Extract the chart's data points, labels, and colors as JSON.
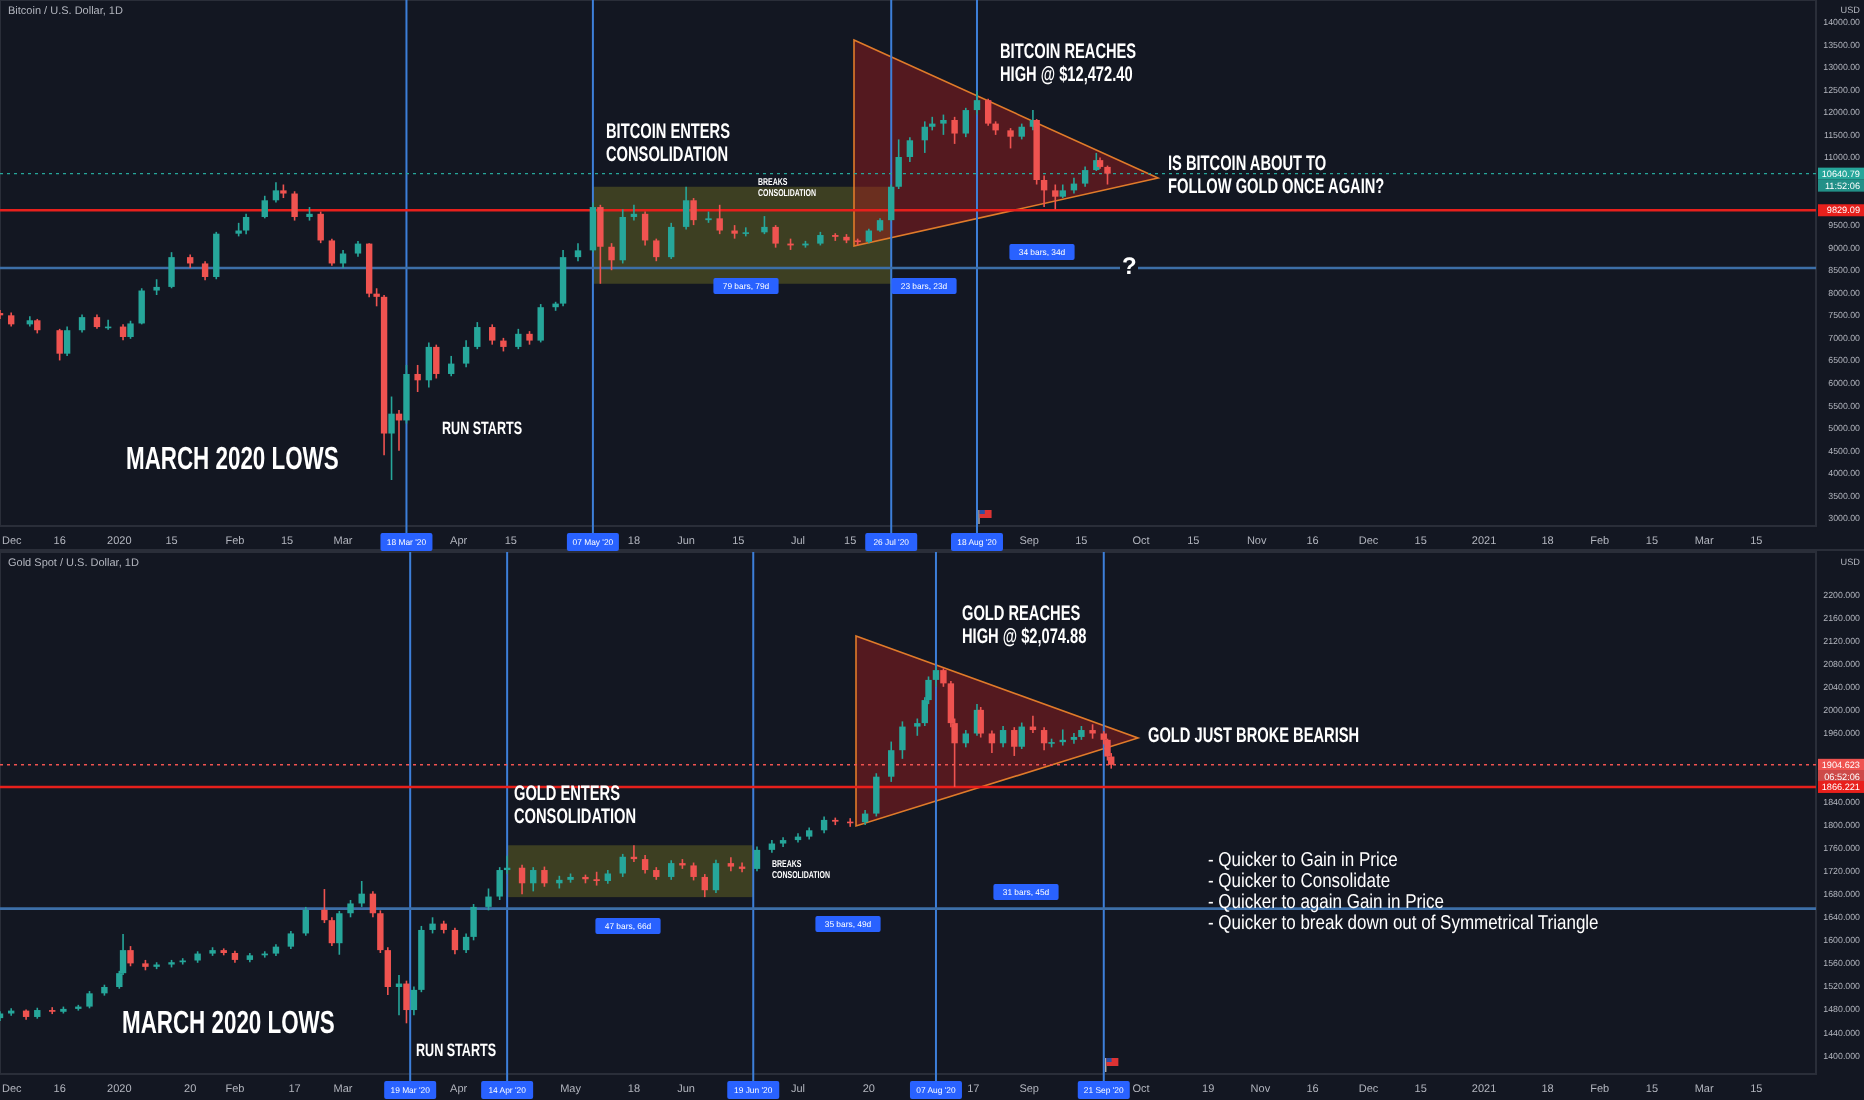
{
  "chart_data": [
    {
      "type": "candlestick",
      "title": "Bitcoin / U.S. Dollar, 1D",
      "ylabel": "USD",
      "colors": [
        "#ef5350",
        "#ef5350",
        "#26a69a",
        "#ef5350",
        "#ef5350",
        "#26a69a",
        "#26a69a",
        "#ef5350",
        "#26a69a",
        "#ef5350",
        "#26a69a",
        "#26a69a",
        "#26a69a",
        "#26a69a",
        "#ef5350",
        "#ef5350",
        "#26a69a",
        "#26a69a",
        "#26a69a",
        "#26a69a",
        "#26a69a",
        "#ef5350",
        "#ef5350",
        "#26a69a",
        "#ef5350",
        "#ef5350",
        "#26a69a",
        "#26a69a",
        "#ef5350",
        "#ef5350",
        "#ef5350",
        "#26a69a",
        "#ef5350",
        "#26a69a",
        "#ef5350",
        "#26a69a",
        "#ef5350",
        "#26a69a",
        "#26a69a",
        "#26a69a",
        "#ef5350",
        "#ef5350",
        "#26a69a",
        "#ef5350",
        "#26a69a",
        "#26a69a",
        "#26a69a",
        "#26a69a",
        "#26a69a",
        "#ef5350",
        "#ef5350",
        "#26a69a",
        "#26a69a",
        "#ef5350",
        "#ef5350",
        "#26a69a",
        "#26a69a",
        "#ef5350",
        "#26a69a",
        "#ef5350",
        "#ef5350",
        "#26a69a",
        "#26a69a",
        "#ef5350",
        "#ef5350",
        "#26a69a",
        "#26a69a",
        "#ef5350",
        "#ef5350",
        "#ef5350",
        "#26a69a",
        "#26a69a",
        "#26a69a",
        "#26a69a",
        "#26a69a",
        "#26a69a",
        "#26a69a",
        "#26a69a",
        "#ef5350",
        "#26a69a",
        "#26a69a",
        "#ef5350",
        "#ef5350",
        "#ef5350",
        "#26a69a",
        "#26a69a",
        "#ef5350",
        "#ef5350",
        "#ef5350",
        "#26a69a",
        "#26a69a",
        "#26a69a",
        "#26a69a",
        "#ef5350",
        "#ef5350"
      ],
      "xlim": [
        "2019-11-30",
        "2021-03-31"
      ],
      "xticks": [
        {
          "value": "2019-12-01",
          "label": "Dec"
        },
        {
          "value": "2019-12-16",
          "label": "16"
        },
        {
          "value": "2020-01-01",
          "label": "2020"
        },
        {
          "value": "2020-01-15",
          "label": "15"
        },
        {
          "value": "2020-02-01",
          "label": "Feb"
        },
        {
          "value": "2020-02-15",
          "label": "15"
        },
        {
          "value": "2020-03-01",
          "label": "Mar"
        },
        {
          "value": "2020-04-01",
          "label": "Apr"
        },
        {
          "value": "2020-04-15",
          "label": "15"
        },
        {
          "value": "2020-05-18",
          "label": "18"
        },
        {
          "value": "2020-06-01",
          "label": "Jun"
        },
        {
          "value": "2020-06-15",
          "label": "15"
        },
        {
          "value": "2020-07-01",
          "label": "Jul"
        },
        {
          "value": "2020-07-15",
          "label": "15"
        },
        {
          "value": "2020-09-01",
          "label": "Sep"
        },
        {
          "value": "2020-09-15",
          "label": "15"
        },
        {
          "value": "2020-10-01",
          "label": "Oct"
        },
        {
          "value": "2020-10-15",
          "label": "15"
        },
        {
          "value": "2020-11-01",
          "label": "Nov"
        },
        {
          "value": "2020-11-16",
          "label": "16"
        },
        {
          "value": "2020-12-01",
          "label": "Dec"
        },
        {
          "value": "2020-12-15",
          "label": "15"
        },
        {
          "value": "2021-01-01",
          "label": "2021"
        },
        {
          "value": "2021-01-18",
          "label": "18"
        },
        {
          "value": "2021-02-01",
          "label": "Feb"
        },
        {
          "value": "2021-02-15",
          "label": "15"
        },
        {
          "value": "2021-03-01",
          "label": "Mar"
        },
        {
          "value": "2021-03-15",
          "label": "15"
        }
      ],
      "ylim": [
        2830,
        14490
      ],
      "yticks": [
        {
          "value": 3000,
          "label": "3000.00"
        },
        {
          "value": 3500,
          "label": "3500.00"
        },
        {
          "value": 4000,
          "label": "4000.00"
        },
        {
          "value": 4500,
          "label": "4500.00"
        },
        {
          "value": 5000,
          "label": "5000.00"
        },
        {
          "value": 5500,
          "label": "5500.00"
        },
        {
          "value": 6000,
          "label": "6000.00"
        },
        {
          "value": 6500,
          "label": "6500.00"
        },
        {
          "value": 7000,
          "label": "7000.00"
        },
        {
          "value": 7500,
          "label": "7500.00"
        },
        {
          "value": 8000,
          "label": "8000.00"
        },
        {
          "value": 8500,
          "label": "8500.00"
        },
        {
          "value": 9000,
          "label": "9000.00"
        },
        {
          "value": 9500,
          "label": "9500.00"
        },
        {
          "value": 11000,
          "label": "11000.00"
        },
        {
          "value": 11500,
          "label": "11500.00"
        },
        {
          "value": 12000,
          "label": "12000.00"
        },
        {
          "value": 12500,
          "label": "12500.00"
        },
        {
          "value": 13000,
          "label": "13000.00"
        },
        {
          "value": 13500,
          "label": "13500.00"
        },
        {
          "value": 14000,
          "label": "14000.00"
        }
      ],
      "x": [
        "2019-11-30",
        "2019-12-03",
        "2019-12-08",
        "2019-12-10",
        "2019-12-16",
        "2019-12-18",
        "2019-12-22",
        "2019-12-26",
        "2019-12-29",
        "2020-01-02",
        "2020-01-04",
        "2020-01-07",
        "2020-01-11",
        "2020-01-15",
        "2020-01-20",
        "2020-01-24",
        "2020-01-27",
        "2020-02-02",
        "2020-02-04",
        "2020-02-09",
        "2020-02-12",
        "2020-02-14",
        "2020-02-17",
        "2020-02-21",
        "2020-02-24",
        "2020-02-27",
        "2020-03-01",
        "2020-03-05",
        "2020-03-08",
        "2020-03-10",
        "2020-03-12",
        "2020-03-14",
        "2020-03-16",
        "2020-03-18",
        "2020-03-21",
        "2020-03-24",
        "2020-03-26",
        "2020-03-30",
        "2020-04-03",
        "2020-04-06",
        "2020-04-10",
        "2020-04-13",
        "2020-04-17",
        "2020-04-20",
        "2020-04-23",
        "2020-04-27",
        "2020-04-29",
        "2020-05-03",
        "2020-05-07",
        "2020-05-09",
        "2020-05-12",
        "2020-05-15",
        "2020-05-18",
        "2020-05-21",
        "2020-05-24",
        "2020-05-28",
        "2020-06-01",
        "2020-06-03",
        "2020-06-07",
        "2020-06-10",
        "2020-06-14",
        "2020-06-17",
        "2020-06-22",
        "2020-06-25",
        "2020-06-29",
        "2020-07-03",
        "2020-07-07",
        "2020-07-11",
        "2020-07-14",
        "2020-07-17",
        "2020-07-20",
        "2020-07-23",
        "2020-07-26",
        "2020-07-28",
        "2020-07-31",
        "2020-08-04",
        "2020-08-06",
        "2020-08-09",
        "2020-08-12",
        "2020-08-15",
        "2020-08-18",
        "2020-08-21",
        "2020-08-23",
        "2020-08-27",
        "2020-08-30",
        "2020-09-02",
        "2020-09-03",
        "2020-09-05",
        "2020-09-08",
        "2020-09-10",
        "2020-09-13",
        "2020-09-16",
        "2020-09-19",
        "2020-09-20",
        "2020-09-22"
      ],
      "ohlc": [
        [
          7550,
          7620,
          7420,
          7500
        ],
        [
          7500,
          7560,
          7250,
          7300
        ],
        [
          7300,
          7480,
          7250,
          7390
        ],
        [
          7390,
          7420,
          7100,
          7170
        ],
        [
          7170,
          7200,
          6500,
          6650
        ],
        [
          6650,
          7250,
          6600,
          7170
        ],
        [
          7170,
          7520,
          7120,
          7460
        ],
        [
          7460,
          7520,
          7200,
          7240
        ],
        [
          7240,
          7400,
          7180,
          7250
        ],
        [
          7250,
          7300,
          6950,
          7020
        ],
        [
          7020,
          7380,
          6980,
          7320
        ],
        [
          7320,
          8100,
          7300,
          8050
        ],
        [
          8050,
          8300,
          7950,
          8130
        ],
        [
          8130,
          8900,
          8100,
          8790
        ],
        [
          8790,
          8850,
          8550,
          8650
        ],
        [
          8650,
          8700,
          8280,
          8350
        ],
        [
          8350,
          9350,
          8300,
          9310
        ],
        [
          9310,
          9550,
          9250,
          9380
        ],
        [
          9380,
          9750,
          9300,
          9680
        ],
        [
          9680,
          10150,
          9650,
          10050
        ],
        [
          10050,
          10450,
          10000,
          10270
        ],
        [
          10270,
          10400,
          10100,
          10200
        ],
        [
          10200,
          10250,
          9600,
          9680
        ],
        [
          9680,
          9900,
          9600,
          9750
        ],
        [
          9750,
          9800,
          9100,
          9160
        ],
        [
          9160,
          9200,
          8600,
          8650
        ],
        [
          8650,
          8950,
          8550,
          8870
        ],
        [
          8870,
          9150,
          8800,
          9090
        ],
        [
          9090,
          9100,
          7900,
          7980
        ],
        [
          7980,
          8100,
          7700,
          7910
        ],
        [
          7910,
          7950,
          4400,
          4880
        ],
        [
          4880,
          5700,
          3850,
          5320
        ],
        [
          5320,
          5400,
          4500,
          5170
        ],
        [
          5170,
          6400,
          5100,
          6200
        ],
        [
          6200,
          6400,
          5800,
          6060
        ],
        [
          6060,
          6900,
          5900,
          6800
        ],
        [
          6800,
          6850,
          6100,
          6200
        ],
        [
          6200,
          6600,
          6150,
          6430
        ],
        [
          6430,
          6950,
          6350,
          6800
        ],
        [
          6800,
          7350,
          6750,
          7240
        ],
        [
          7240,
          7300,
          6850,
          6940
        ],
        [
          6940,
          7000,
          6700,
          6800
        ],
        [
          6800,
          7200,
          6750,
          7090
        ],
        [
          7090,
          7150,
          6850,
          6940
        ],
        [
          6940,
          7750,
          6900,
          7680
        ],
        [
          7680,
          7800,
          7600,
          7760
        ],
        [
          7760,
          8950,
          7700,
          8790
        ],
        [
          8790,
          9100,
          8700,
          8940
        ],
        [
          8940,
          10000,
          8900,
          9900
        ],
        [
          9900,
          9950,
          8200,
          9020
        ],
        [
          9020,
          9100,
          8500,
          8720
        ],
        [
          8720,
          9850,
          8650,
          9680
        ],
        [
          9680,
          9950,
          9600,
          9750
        ],
        [
          9750,
          9800,
          9050,
          9160
        ],
        [
          9160,
          9200,
          8700,
          8790
        ],
        [
          8790,
          9550,
          8750,
          9460
        ],
        [
          9460,
          10350,
          9400,
          10050
        ],
        [
          10050,
          10100,
          9500,
          9610
        ],
        [
          9610,
          9800,
          9550,
          9650
        ],
        [
          9650,
          9950,
          9300,
          9380
        ],
        [
          9380,
          9500,
          9200,
          9310
        ],
        [
          9310,
          9450,
          9250,
          9340
        ],
        [
          9340,
          9700,
          9300,
          9460
        ],
        [
          9460,
          9500,
          9000,
          9090
        ],
        [
          9090,
          9200,
          8950,
          9050
        ],
        [
          9050,
          9150,
          9000,
          9090
        ],
        [
          9090,
          9350,
          9050,
          9280
        ],
        [
          9280,
          9320,
          9150,
          9240
        ],
        [
          9240,
          9300,
          9100,
          9160
        ],
        [
          9160,
          9200,
          9050,
          9130
        ],
        [
          9130,
          9420,
          9100,
          9380
        ],
        [
          9380,
          9650,
          9350,
          9610
        ],
        [
          9610,
          10400,
          9600,
          10350
        ],
        [
          10350,
          11400,
          10300,
          11010
        ],
        [
          11010,
          11450,
          10900,
          11380
        ],
        [
          11380,
          11800,
          11100,
          11680
        ],
        [
          11680,
          11900,
          11600,
          11750
        ],
        [
          11750,
          11950,
          11500,
          11830
        ],
        [
          11830,
          11900,
          11300,
          11530
        ],
        [
          11530,
          12100,
          11450,
          12050
        ],
        [
          12050,
          12472.4,
          11950,
          12270
        ],
        [
          12270,
          12300,
          11700,
          11750
        ],
        [
          11750,
          11800,
          11500,
          11600
        ],
        [
          11600,
          11650,
          11200,
          11460
        ],
        [
          11460,
          11750,
          11400,
          11680
        ],
        [
          11680,
          12050,
          11600,
          11830
        ],
        [
          11830,
          11850,
          10400,
          10500
        ],
        [
          10500,
          10600,
          9900,
          10270
        ],
        [
          10270,
          10400,
          9850,
          10130
        ],
        [
          10130,
          10400,
          10100,
          10270
        ],
        [
          10270,
          10550,
          10200,
          10420
        ],
        [
          10420,
          10800,
          10350,
          10720
        ],
        [
          10720,
          11100,
          10700,
          10940
        ],
        [
          10940,
          11000,
          10750,
          10790
        ],
        [
          10790,
          10820,
          10400,
          10640.79
        ]
      ],
      "bands": [
        {
          "axis": "x",
          "from": "2020-05-07",
          "to": "2020-07-26",
          "color": "#7d7d22"
        }
      ],
      "ref_lines": [
        {
          "axis": "x",
          "value": "2020-03-18",
          "label": "18 Mar '20",
          "color": "#3d7fd9"
        },
        {
          "axis": "x",
          "value": "2020-05-07",
          "label": "07 May '20",
          "color": "#3d7fd9"
        },
        {
          "axis": "x",
          "value": "2020-07-26",
          "label": "26 Jul '20",
          "color": "#3d7fd9"
        },
        {
          "axis": "x",
          "value": "2020-08-18",
          "label": "18 Aug '20",
          "color": "#3d7fd9"
        },
        {
          "axis": "y",
          "value": 10640.79,
          "label": "10640.79",
          "color": "#26a69a",
          "line_style": "dotted"
        },
        {
          "axis": "y",
          "value": 9829.09,
          "label": "9829.09",
          "color": "#e8201c"
        },
        {
          "axis": "y",
          "value": 8550,
          "label": null,
          "color": "#3d6fa8"
        }
      ],
      "annotations": [
        "MARCH 2020 LOWS",
        "RUN STARTS",
        "BITCOIN ENTERS\nCONSOLIDATION",
        "BREAKS\nCONSOLIDATION",
        "BITCOIN REACHES\nHIGH @ $12,472.40",
        "IS BITCOIN ABOUT TO\nFOLLOW GOLD ONCE AGAIN?",
        "?",
        "79 bars, 79d",
        "23 bars, 23d",
        "34 bars, 34d",
        "11:52:06"
      ]
    },
    {
      "type": "candlestick",
      "title": "Gold Spot / U.S. Dollar, 1D",
      "ylabel": "USD",
      "colors": [
        "#26a69a",
        "#26a69a",
        "#ef5350",
        "#26a69a",
        "#ef5350",
        "#26a69a",
        "#26a69a",
        "#26a69a",
        "#26a69a",
        "#26a69a",
        "#26a69a",
        "#ef5350",
        "#ef5350",
        "#26a69a",
        "#26a69a",
        "#26a69a",
        "#26a69a",
        "#26a69a",
        "#ef5350",
        "#ef5350",
        "#26a69a",
        "#26a69a",
        "#26a69a",
        "#26a69a",
        "#26a69a",
        "#ef5350",
        "#ef5350",
        "#26a69a",
        "#26a69a",
        "#26a69a",
        "#ef5350",
        "#ef5350",
        "#ef5350",
        "#26a69a",
        "#ef5350",
        "#26a69a",
        "#26a69a",
        "#26a69a",
        "#ef5350",
        "#ef5350",
        "#26a69a",
        "#26a69a",
        "#26a69a",
        "#26a69a",
        "#26a69a",
        "#ef5350",
        "#26a69a",
        "#ef5350",
        "#26a69a",
        "#26a69a",
        "#ef5350",
        "#ef5350",
        "#26a69a",
        "#26a69a",
        "#ef5350",
        "#ef5350",
        "#ef5350",
        "#26a69a",
        "#ef5350",
        "#ef5350",
        "#ef5350",
        "#26a69a",
        "#ef5350",
        "#ef5350",
        "#26a69a",
        "#26a69a",
        "#26a69a",
        "#26a69a",
        "#26a69a",
        "#26a69a",
        "#ef5350",
        "#ef5350",
        "#26a69a",
        "#26a69a",
        "#26a69a",
        "#26a69a",
        "#26a69a",
        "#26a69a",
        "#26a69a",
        "#26a69a",
        "#ef5350",
        "#ef5350",
        "#ef5350",
        "#26a69a",
        "#26a69a",
        "#ef5350",
        "#ef5350",
        "#26a69a",
        "#ef5350",
        "#26a69a",
        "#ef5350",
        "#ef5350",
        "#26a69a",
        "#26a69a",
        "#26a69a",
        "#26a69a",
        "#ef5350",
        "#ef5350",
        "#ef5350",
        "#ef5350"
      ],
      "xlim": [
        "2019-11-30",
        "2021-03-31"
      ],
      "xticks": [
        {
          "value": "2019-12-01",
          "label": "Dec"
        },
        {
          "value": "2019-12-16",
          "label": "16"
        },
        {
          "value": "2020-01-01",
          "label": "2020"
        },
        {
          "value": "2020-01-20",
          "label": "20"
        },
        {
          "value": "2020-02-01",
          "label": "Feb"
        },
        {
          "value": "2020-02-17",
          "label": "17"
        },
        {
          "value": "2020-03-01",
          "label": "Mar"
        },
        {
          "value": "2020-04-01",
          "label": "Apr"
        },
        {
          "value": "2020-05-01",
          "label": "May"
        },
        {
          "value": "2020-05-18",
          "label": "18"
        },
        {
          "value": "2020-06-01",
          "label": "Jun"
        },
        {
          "value": "2020-07-01",
          "label": "Jul"
        },
        {
          "value": "2020-07-20",
          "label": "20"
        },
        {
          "value": "2020-08-17",
          "label": "17"
        },
        {
          "value": "2020-09-01",
          "label": "Sep"
        },
        {
          "value": "2020-10-01",
          "label": "Oct"
        },
        {
          "value": "2020-10-19",
          "label": "19"
        },
        {
          "value": "2020-11-02",
          "label": "Nov"
        },
        {
          "value": "2020-11-16",
          "label": "16"
        },
        {
          "value": "2020-12-01",
          "label": "Dec"
        },
        {
          "value": "2020-12-15",
          "label": "15"
        },
        {
          "value": "2021-01-01",
          "label": "2021"
        },
        {
          "value": "2021-01-18",
          "label": "18"
        },
        {
          "value": "2021-02-01",
          "label": "Feb"
        },
        {
          "value": "2021-02-15",
          "label": "15"
        },
        {
          "value": "2021-03-01",
          "label": "Mar"
        },
        {
          "value": "2021-03-15",
          "label": "15"
        }
      ],
      "ylim": [
        1368,
        2274
      ],
      "yticks": [
        {
          "value": 1400,
          "label": "1400.000"
        },
        {
          "value": 1440,
          "label": "1440.000"
        },
        {
          "value": 1480,
          "label": "1480.000"
        },
        {
          "value": 1520,
          "label": "1520.000"
        },
        {
          "value": 1560,
          "label": "1560.000"
        },
        {
          "value": 1600,
          "label": "1600.000"
        },
        {
          "value": 1640,
          "label": "1640.000"
        },
        {
          "value": 1680,
          "label": "1680.000"
        },
        {
          "value": 1720,
          "label": "1720.000"
        },
        {
          "value": 1760,
          "label": "1760.000"
        },
        {
          "value": 1800,
          "label": "1800.000"
        },
        {
          "value": 1840,
          "label": "1840.000"
        },
        {
          "value": 1960,
          "label": "1960.000"
        },
        {
          "value": 2000,
          "label": "2000.000"
        },
        {
          "value": 2040,
          "label": "2040.000"
        },
        {
          "value": 2080,
          "label": "2080.000"
        },
        {
          "value": 2120,
          "label": "2120.000"
        },
        {
          "value": 2160,
          "label": "2160.000"
        },
        {
          "value": 2200,
          "label": "2200.000"
        }
      ],
      "x": [
        "2019-11-30",
        "2019-12-03",
        "2019-12-07",
        "2019-12-10",
        "2019-12-14",
        "2019-12-17",
        "2019-12-21",
        "2019-12-24",
        "2019-12-28",
        "2020-01-01",
        "2020-01-02",
        "2020-01-04",
        "2020-01-08",
        "2020-01-11",
        "2020-01-15",
        "2020-01-18",
        "2020-01-22",
        "2020-01-26",
        "2020-01-29",
        "2020-02-01",
        "2020-02-05",
        "2020-02-09",
        "2020-02-12",
        "2020-02-16",
        "2020-02-20",
        "2020-02-25",
        "2020-02-27",
        "2020-02-29",
        "2020-03-03",
        "2020-03-06",
        "2020-03-09",
        "2020-03-11",
        "2020-03-13",
        "2020-03-16",
        "2020-03-18",
        "2020-03-20",
        "2020-03-22",
        "2020-03-25",
        "2020-03-28",
        "2020-03-31",
        "2020-04-03",
        "2020-04-05",
        "2020-04-09",
        "2020-04-12",
        "2020-04-14",
        "2020-04-18",
        "2020-04-21",
        "2020-04-24",
        "2020-04-28",
        "2020-05-01",
        "2020-05-05",
        "2020-05-08",
        "2020-05-11",
        "2020-05-15",
        "2020-05-18",
        "2020-05-21",
        "2020-05-24",
        "2020-05-28",
        "2020-05-31",
        "2020-06-03",
        "2020-06-06",
        "2020-06-09",
        "2020-06-13",
        "2020-06-16",
        "2020-06-20",
        "2020-06-24",
        "2020-06-27",
        "2020-07-01",
        "2020-07-04",
        "2020-07-08",
        "2020-07-11",
        "2020-07-15",
        "2020-07-19",
        "2020-07-22",
        "2020-07-26",
        "2020-07-29",
        "2020-08-02",
        "2020-08-04",
        "2020-08-05",
        "2020-08-07",
        "2020-08-09",
        "2020-08-11",
        "2020-08-12",
        "2020-08-15",
        "2020-08-18",
        "2020-08-19",
        "2020-08-22",
        "2020-08-25",
        "2020-08-28",
        "2020-08-30",
        "2020-09-02",
        "2020-09-05",
        "2020-09-07",
        "2020-09-10",
        "2020-09-13",
        "2020-09-15",
        "2020-09-18",
        "2020-09-21",
        "2020-09-22",
        "2020-09-23"
      ],
      "ohlc": [
        [
          1465,
          1477,
          1460,
          1473
        ],
        [
          1473,
          1482,
          1469,
          1478
        ],
        [
          1478,
          1480,
          1462,
          1467
        ],
        [
          1467,
          1483,
          1464,
          1479
        ],
        [
          1479,
          1484,
          1472,
          1476
        ],
        [
          1476,
          1485,
          1473,
          1481
        ],
        [
          1481,
          1488,
          1478,
          1485
        ],
        [
          1485,
          1512,
          1482,
          1508
        ],
        [
          1508,
          1523,
          1504,
          1519
        ],
        [
          1519,
          1547,
          1516,
          1543
        ],
        [
          1543,
          1611,
          1540,
          1583
        ],
        [
          1583,
          1590,
          1555,
          1560
        ],
        [
          1560,
          1566,
          1548,
          1554
        ],
        [
          1554,
          1562,
          1550,
          1558
        ],
        [
          1558,
          1566,
          1553,
          1562
        ],
        [
          1562,
          1569,
          1558,
          1565
        ],
        [
          1565,
          1581,
          1561,
          1577
        ],
        [
          1577,
          1588,
          1573,
          1583
        ],
        [
          1583,
          1586,
          1574,
          1578
        ],
        [
          1578,
          1582,
          1561,
          1566
        ],
        [
          1566,
          1578,
          1562,
          1574
        ],
        [
          1574,
          1581,
          1570,
          1577
        ],
        [
          1577,
          1593,
          1573,
          1589
        ],
        [
          1589,
          1616,
          1585,
          1612
        ],
        [
          1612,
          1658,
          1608,
          1653
        ],
        [
          1653,
          1689,
          1630,
          1635
        ],
        [
          1635,
          1640,
          1590,
          1595
        ],
        [
          1595,
          1651,
          1575,
          1647
        ],
        [
          1647,
          1670,
          1640,
          1664
        ],
        [
          1664,
          1703,
          1658,
          1681
        ],
        [
          1681,
          1685,
          1640,
          1647
        ],
        [
          1647,
          1652,
          1578,
          1583
        ],
        [
          1583,
          1588,
          1505,
          1519
        ],
        [
          1519,
          1540,
          1470,
          1525
        ],
        [
          1525,
          1530,
          1456,
          1479
        ],
        [
          1479,
          1520,
          1470,
          1514
        ],
        [
          1514,
          1625,
          1510,
          1618
        ],
        [
          1618,
          1640,
          1612,
          1629
        ],
        [
          1629,
          1634,
          1612,
          1618
        ],
        [
          1618,
          1622,
          1576,
          1583
        ],
        [
          1583,
          1612,
          1578,
          1606
        ],
        [
          1606,
          1663,
          1600,
          1658
        ],
        [
          1658,
          1690,
          1652,
          1676
        ],
        [
          1676,
          1727,
          1670,
          1722
        ],
        [
          1722,
          1747,
          1715,
          1726
        ],
        [
          1726,
          1731,
          1680,
          1699
        ],
        [
          1699,
          1727,
          1685,
          1722
        ],
        [
          1722,
          1728,
          1693,
          1699
        ],
        [
          1699,
          1712,
          1690,
          1705
        ],
        [
          1705,
          1716,
          1700,
          1710
        ],
        [
          1710,
          1714,
          1699,
          1706
        ],
        [
          1706,
          1719,
          1695,
          1703
        ],
        [
          1703,
          1722,
          1698,
          1716
        ],
        [
          1716,
          1750,
          1710,
          1745
        ],
        [
          1745,
          1765,
          1736,
          1741
        ],
        [
          1741,
          1748,
          1716,
          1722
        ],
        [
          1722,
          1727,
          1705,
          1710
        ],
        [
          1710,
          1739,
          1705,
          1734
        ],
        [
          1734,
          1741,
          1724,
          1730
        ],
        [
          1730,
          1735,
          1704,
          1710
        ],
        [
          1710,
          1715,
          1675,
          1687
        ],
        [
          1687,
          1740,
          1682,
          1734
        ],
        [
          1734,
          1744,
          1720,
          1728
        ],
        [
          1728,
          1735,
          1718,
          1724
        ],
        [
          1724,
          1763,
          1720,
          1757
        ],
        [
          1757,
          1774,
          1752,
          1768
        ],
        [
          1768,
          1779,
          1762,
          1774
        ],
        [
          1774,
          1786,
          1770,
          1780
        ],
        [
          1780,
          1796,
          1775,
          1791
        ],
        [
          1791,
          1815,
          1786,
          1809
        ],
        [
          1809,
          1813,
          1800,
          1806
        ],
        [
          1806,
          1812,
          1797,
          1805
        ],
        [
          1805,
          1826,
          1800,
          1820
        ],
        [
          1820,
          1890,
          1815,
          1884
        ],
        [
          1884,
          1945,
          1875,
          1930
        ],
        [
          1930,
          1980,
          1915,
          1971
        ],
        [
          1971,
          1985,
          1955,
          1977
        ],
        [
          1977,
          2022,
          1972,
          2017
        ],
        [
          2017,
          2058,
          2010,
          2052
        ],
        [
          2052,
          2074.88,
          2040,
          2069
        ],
        [
          2069,
          2072,
          2040,
          2046
        ],
        [
          2046,
          2050,
          1970,
          1977
        ],
        [
          1977,
          1985,
          1866.221,
          1942
        ],
        [
          1942,
          1965,
          1935,
          1959
        ],
        [
          1959,
          2010,
          1955,
          2000
        ],
        [
          2000,
          2005,
          1952,
          1959
        ],
        [
          1959,
          1964,
          1925,
          1942
        ],
        [
          1942,
          1972,
          1935,
          1965
        ],
        [
          1965,
          1970,
          1920,
          1936
        ],
        [
          1936,
          1978,
          1932,
          1971
        ],
        [
          1971,
          1990,
          1960,
          1965
        ],
        [
          1965,
          1970,
          1930,
          1942
        ],
        [
          1942,
          1950,
          1935,
          1944
        ],
        [
          1944,
          1966,
          1938,
          1948
        ],
        [
          1948,
          1960,
          1941,
          1953
        ],
        [
          1953,
          1972,
          1948,
          1965
        ],
        [
          1965,
          1975,
          1950,
          1959
        ],
        [
          1959,
          1963,
          1940,
          1948
        ],
        [
          1948,
          1950,
          1912,
          1919
        ],
        [
          1919,
          1925,
          1898,
          1904.623
        ]
      ],
      "bands": [
        {
          "axis": "x",
          "from": "2020-04-14",
          "to": "2020-06-19",
          "color": "#7d7d22"
        }
      ],
      "ref_lines": [
        {
          "axis": "x",
          "value": "2020-03-19",
          "label": "19 Mar '20",
          "color": "#3d7fd9"
        },
        {
          "axis": "x",
          "value": "2020-04-14",
          "label": "14 Apr '20",
          "color": "#3d7fd9"
        },
        {
          "axis": "x",
          "value": "2020-06-19",
          "label": "19 Jun '20",
          "color": "#3d7fd9"
        },
        {
          "axis": "x",
          "value": "2020-08-07",
          "label": "07 Aug '20",
          "color": "#3d7fd9"
        },
        {
          "axis": "x",
          "value": "2020-09-21",
          "label": "21 Sep '20",
          "color": "#3d7fd9"
        },
        {
          "axis": "y",
          "value": 1904.623,
          "label": "1904.623",
          "color": "#ef5350",
          "line_style": "dotted"
        },
        {
          "axis": "y",
          "value": 1866.221,
          "label": "1866.221",
          "color": "#e8201c"
        },
        {
          "axis": "y",
          "value": 1655,
          "label": null,
          "color": "#3d6fa8"
        }
      ],
      "annotations": [
        "MARCH 2020 LOWS",
        "RUN STARTS",
        "GOLD ENTERS\nCONSOLIDATION",
        "BREAKS\nCONSOLIDATION",
        "GOLD REACHES\nHIGH @ $2,074.88",
        "GOLD JUST BROKE BEARISH",
        "47 bars, 66d",
        "35 bars, 49d",
        "31 bars, 45d",
        "06:52:06",
        "- Quicker to Gain in Price",
        "- Quicker to Consolidate",
        "- Quicker to again Gain in Price",
        "- Quicker to break down out of Symmetrical Triangle"
      ]
    }
  ]
}
